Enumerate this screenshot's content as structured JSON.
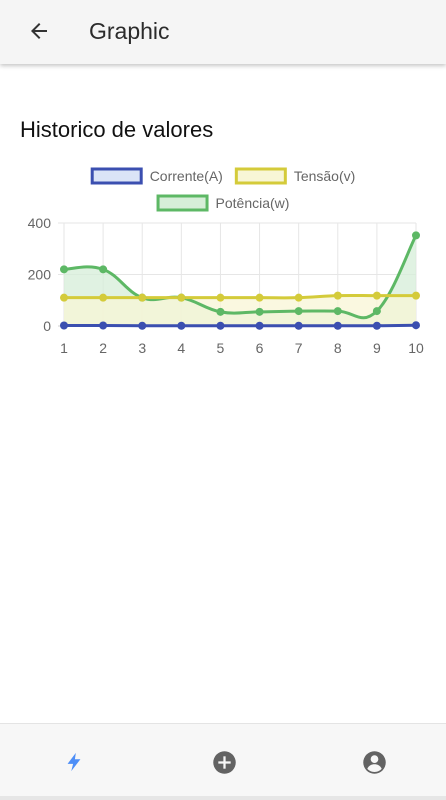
{
  "header": {
    "title": "Graphic",
    "back_icon": "arrow-left-icon"
  },
  "section": {
    "title": "Historico de valores"
  },
  "bottom_nav": {
    "items": [
      {
        "icon": "lightning-icon",
        "active": true,
        "color": "#4d8ef7"
      },
      {
        "icon": "add-circle-icon",
        "active": false,
        "color": "#636363"
      },
      {
        "icon": "account-circle-icon",
        "active": false,
        "color": "#636363"
      }
    ]
  },
  "chart_data": {
    "type": "line",
    "categories": [
      "1",
      "2",
      "3",
      "4",
      "5",
      "6",
      "7",
      "8",
      "9",
      "10"
    ],
    "y_ticks": [
      "0",
      "200",
      "400"
    ],
    "ylim": [
      0,
      400
    ],
    "grid": true,
    "legend_position": "top",
    "series": [
      {
        "name": "Corrente(A)",
        "color": "#3b4fb0",
        "fill": "#dbe4f7",
        "values": [
          2,
          2,
          1,
          1,
          1,
          1,
          1,
          1,
          1,
          3
        ]
      },
      {
        "name": "Tensão(v)",
        "color": "#d4cb3a",
        "fill": "#f8f6d6",
        "values": [
          110,
          110,
          110,
          110,
          110,
          110,
          110,
          118,
          118,
          118
        ]
      },
      {
        "name": "Potência(w)",
        "color": "#5db865",
        "fill": "#d6eed8",
        "values": [
          220,
          220,
          110,
          110,
          55,
          55,
          58,
          58,
          58,
          352
        ]
      }
    ]
  }
}
